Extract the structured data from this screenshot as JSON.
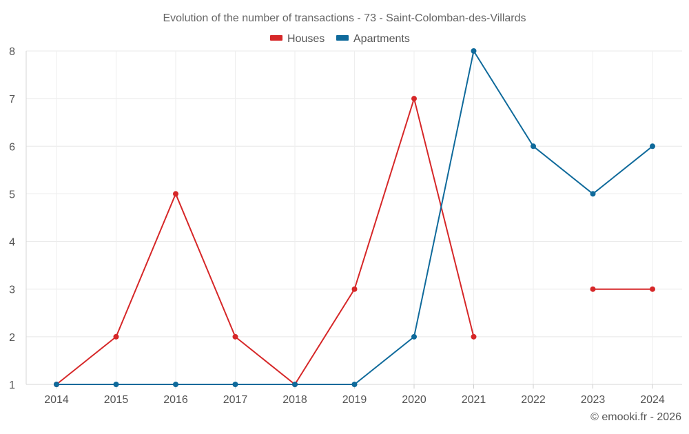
{
  "chart_data": {
    "type": "line",
    "title": "Evolution of the number of transactions - 73 - Saint-Colomban-des-Villards",
    "xlabel": "",
    "ylabel": "",
    "categories": [
      "2014",
      "2015",
      "2016",
      "2017",
      "2018",
      "2019",
      "2020",
      "2021",
      "2022",
      "2023",
      "2024"
    ],
    "yticks": [
      "1",
      "2",
      "3",
      "4",
      "5",
      "6",
      "7",
      "8"
    ],
    "ylim": [
      1,
      8
    ],
    "grid": true,
    "legend_position": "top-center",
    "series": [
      {
        "name": "Houses",
        "color": "#d62728",
        "values": [
          1,
          2,
          5,
          2,
          1,
          3,
          7,
          2,
          null,
          3,
          3
        ]
      },
      {
        "name": "Apartments",
        "color": "#0f6a9b",
        "values": [
          1,
          1,
          1,
          1,
          1,
          1,
          2,
          8,
          6,
          5,
          6
        ]
      }
    ],
    "footer": "© emooki.fr - 2026"
  }
}
